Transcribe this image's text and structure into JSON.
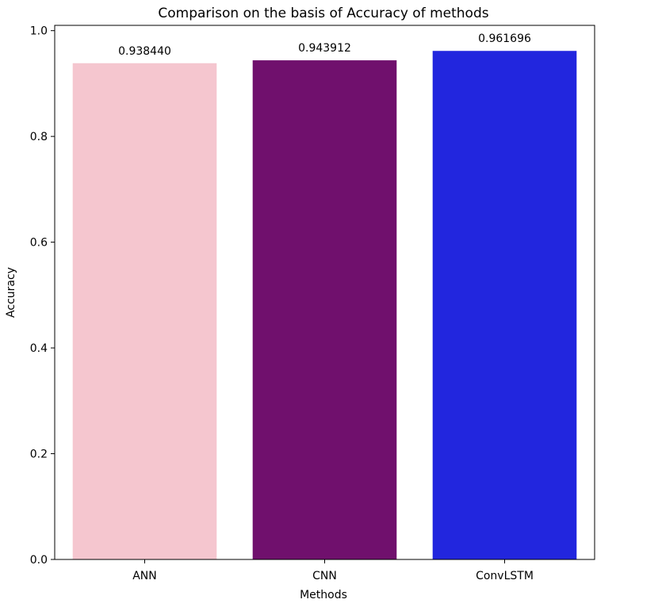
{
  "chart_data": {
    "type": "bar",
    "title": "Comparison on  the basis of Accuracy of methods",
    "xlabel": "Methods",
    "ylabel": "Accuracy",
    "categories": [
      "ANN",
      "CNN",
      "ConvLSTM"
    ],
    "values": [
      0.93844,
      0.943912,
      0.961696
    ],
    "value_labels": [
      "0.938440",
      "0.943912",
      "0.961696"
    ],
    "colors": [
      "#f5c6cf",
      "#70106d",
      "#2226de"
    ],
    "ylim": [
      0,
      1.01
    ],
    "yticks": [
      0.0,
      0.2,
      0.4,
      0.6,
      0.8,
      1.0
    ],
    "ytick_labels": [
      "0.0",
      "0.2",
      "0.4",
      "0.6",
      "0.8",
      "1.0"
    ],
    "grid": false,
    "legend": "none"
  }
}
